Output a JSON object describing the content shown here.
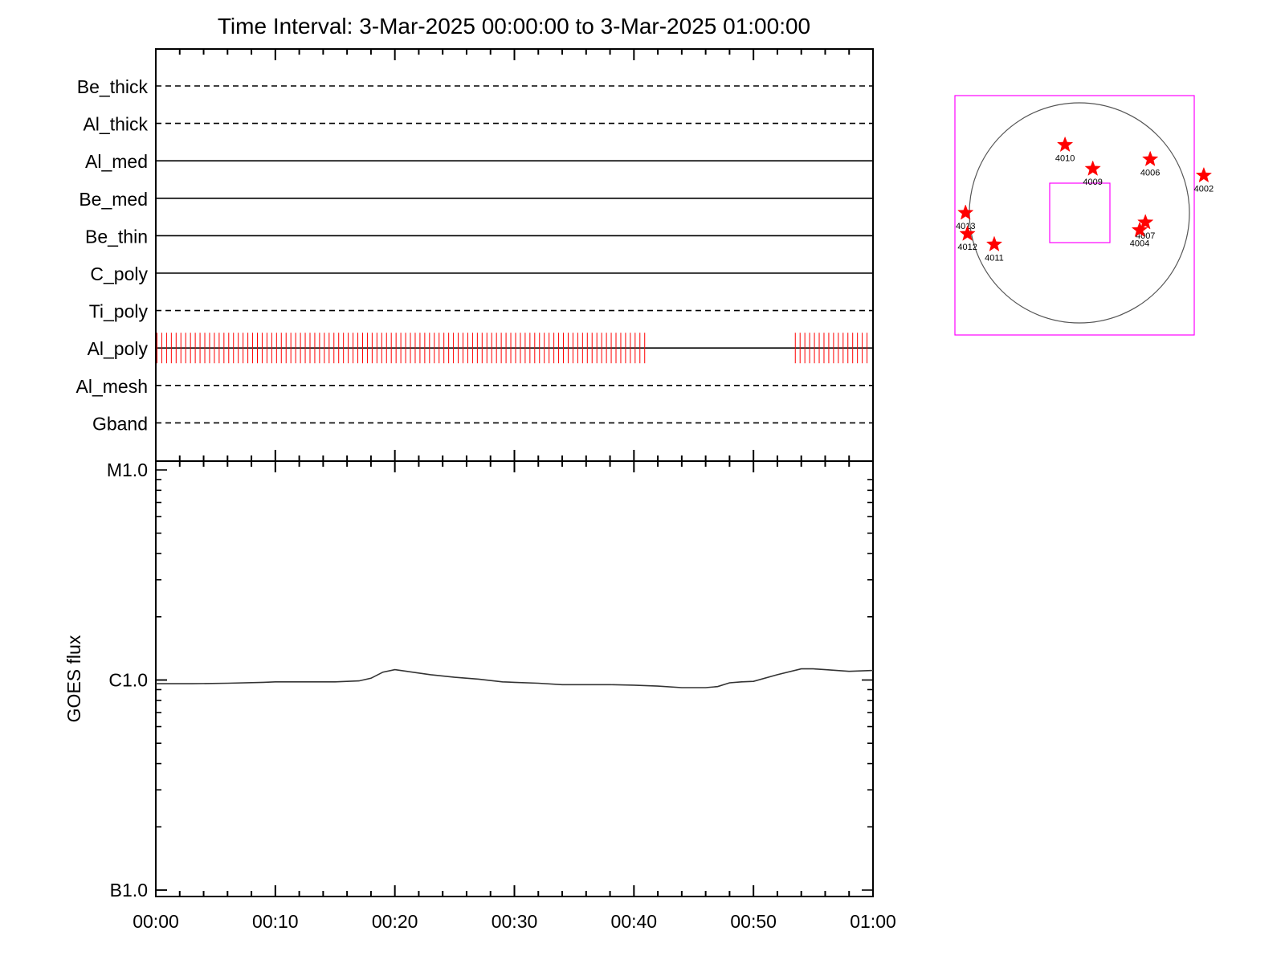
{
  "title": "Time Interval:  3-Mar-2025 00:00:00 to  3-Mar-2025 01:00:00",
  "colors": {
    "axis": "#000000",
    "exposure_marks": "#ff0000",
    "fov_box": "#ff00ff",
    "star": "#ff0000",
    "limb": "#555555"
  },
  "chart_data": [
    {
      "type": "timeline",
      "xlim": [
        "00:00",
        "01:00"
      ],
      "x_unit": "minutes",
      "rows": [
        {
          "label": "Be_thick",
          "style": "dashed"
        },
        {
          "label": "Al_thick",
          "style": "dashed"
        },
        {
          "label": "Al_med",
          "style": "solid"
        },
        {
          "label": "Be_med",
          "style": "solid"
        },
        {
          "label": "Be_thin",
          "style": "solid"
        },
        {
          "label": "C_poly",
          "style": "solid"
        },
        {
          "label": "Ti_poly",
          "style": "dashed"
        },
        {
          "label": "Al_poly",
          "style": "solid",
          "exposure_ranges": [
            [
              0.1,
              41.2
            ],
            [
              53.5,
              59.6
            ]
          ],
          "exposure_spacing_min": 0.4
        },
        {
          "label": "Al_mesh",
          "style": "dashed"
        },
        {
          "label": "Gband",
          "style": "dashed"
        }
      ]
    },
    {
      "type": "line",
      "ylabel": "GOES flux",
      "yscale": "log",
      "ylim": [
        1e-07,
        1e-05
      ],
      "yticks": [
        {
          "label": "B1.0",
          "value": 1e-07
        },
        {
          "label": "C1.0",
          "value": 1e-06
        },
        {
          "label": "M1.0",
          "value": 1e-05
        }
      ],
      "xticks": [
        "00:00",
        "00:10",
        "00:20",
        "00:30",
        "00:40",
        "00:50",
        "01:00"
      ],
      "xlim": [
        "00:00",
        "01:00"
      ],
      "series": [
        {
          "x": [
            0,
            3,
            6,
            9,
            10,
            12,
            15,
            17,
            18,
            19,
            20,
            21,
            23,
            25,
            27,
            29,
            30,
            32,
            34,
            36,
            38,
            40,
            42,
            44,
            46,
            47,
            48,
            49,
            50,
            52,
            54,
            55,
            56,
            58,
            60
          ],
          "y": [
            9.6e-07,
            9.6e-07,
            9.65e-07,
            9.75e-07,
            9.8e-07,
            9.8e-07,
            9.8e-07,
            9.9e-07,
            1.02e-06,
            1.09e-06,
            1.12e-06,
            1.1e-06,
            1.06e-06,
            1.03e-06,
            1.01e-06,
            9.8e-07,
            9.75e-07,
            9.65e-07,
            9.5e-07,
            9.5e-07,
            9.5e-07,
            9.45e-07,
            9.35e-07,
            9.2e-07,
            9.2e-07,
            9.3e-07,
            9.7e-07,
            9.8e-07,
            9.85e-07,
            1.06e-06,
            1.13e-06,
            1.13e-06,
            1.12e-06,
            1.1e-06,
            1.11e-06
          ]
        }
      ]
    },
    {
      "type": "scatter",
      "markers": [
        {
          "label": "4010",
          "x": -150,
          "y": 710
        },
        {
          "label": "4009",
          "x": 140,
          "y": 460
        },
        {
          "label": "4006",
          "x": 740,
          "y": 560
        },
        {
          "label": "4002",
          "x": 1300,
          "y": 390
        },
        {
          "label": "4013",
          "x": -1190,
          "y": 0
        },
        {
          "label": "4012",
          "x": -1170,
          "y": -220
        },
        {
          "label": "4011",
          "x": -890,
          "y": -330
        },
        {
          "label": "4007",
          "x": 690,
          "y": -100
        },
        {
          "label": "4004",
          "x": 630,
          "y": -180
        }
      ]
    }
  ]
}
